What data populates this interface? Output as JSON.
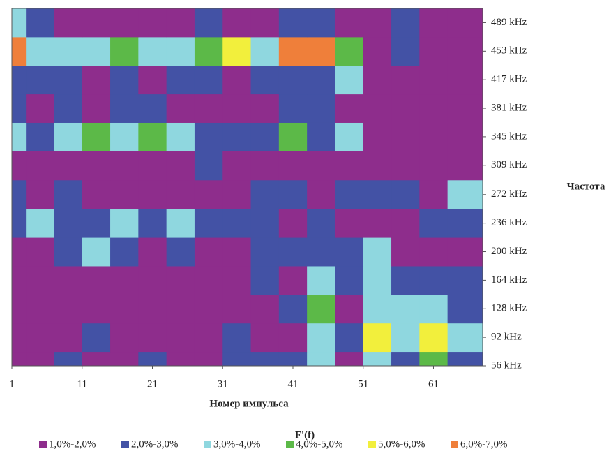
{
  "chart_data": {
    "type": "heatmap",
    "x_label": "Номер импульса",
    "y_label": "Частота",
    "legend_title": "F'(f)",
    "x": [
      1,
      5,
      9,
      13,
      17,
      21,
      25,
      29,
      33,
      37,
      41,
      45,
      49,
      53,
      57,
      61,
      65
    ],
    "y": [
      56,
      92,
      128,
      164,
      200,
      236,
      272,
      309,
      345,
      381,
      417,
      453,
      489
    ],
    "z": [
      [
        1.5,
        1.5,
        2.5,
        1.5,
        1.5,
        2.5,
        1.5,
        1.5,
        2.5,
        2.5,
        2.5,
        3.5,
        1.5,
        3.5,
        2.5,
        4.5,
        2.5
      ],
      [
        1.5,
        1.5,
        1.5,
        2.5,
        1.5,
        1.5,
        1.5,
        1.5,
        2.5,
        1.5,
        1.5,
        3.5,
        2.5,
        5.5,
        3.5,
        5.5,
        3.5
      ],
      [
        1.5,
        1.5,
        1.5,
        1.5,
        1.5,
        1.5,
        1.5,
        1.5,
        1.5,
        1.5,
        2.5,
        4.5,
        1.5,
        3.5,
        3.5,
        3.5,
        2.5
      ],
      [
        1.5,
        1.5,
        1.5,
        1.5,
        1.5,
        1.5,
        1.5,
        1.5,
        1.5,
        2.5,
        1.5,
        3.5,
        2.5,
        3.5,
        2.5,
        2.5,
        2.5
      ],
      [
        1.5,
        1.5,
        2.5,
        3.5,
        2.5,
        1.5,
        2.5,
        1.5,
        1.5,
        2.5,
        2.5,
        2.5,
        2.5,
        3.5,
        1.5,
        1.5,
        1.5
      ],
      [
        2.5,
        3.5,
        2.5,
        2.5,
        3.5,
        2.5,
        3.5,
        2.5,
        2.5,
        2.5,
        1.5,
        2.5,
        1.5,
        1.5,
        1.5,
        2.5,
        2.5
      ],
      [
        2.5,
        1.5,
        2.5,
        1.5,
        1.5,
        1.5,
        1.5,
        1.5,
        1.5,
        2.5,
        2.5,
        1.5,
        2.5,
        2.5,
        2.5,
        1.5,
        3.5
      ],
      [
        1.5,
        1.5,
        1.5,
        1.5,
        1.5,
        1.5,
        1.5,
        2.5,
        1.5,
        1.5,
        1.5,
        1.5,
        1.5,
        1.5,
        1.5,
        1.5,
        1.5
      ],
      [
        3.5,
        2.5,
        3.5,
        4.5,
        3.5,
        4.5,
        3.5,
        2.5,
        2.5,
        2.5,
        4.5,
        2.5,
        3.5,
        1.5,
        1.5,
        1.5,
        1.5
      ],
      [
        2.5,
        1.5,
        2.5,
        1.5,
        2.5,
        2.5,
        1.5,
        1.5,
        1.5,
        1.5,
        2.5,
        2.5,
        1.5,
        1.5,
        1.5,
        1.5,
        1.5
      ],
      [
        2.5,
        2.5,
        2.5,
        1.5,
        2.5,
        1.5,
        2.5,
        2.5,
        1.5,
        2.5,
        2.5,
        2.5,
        3.5,
        1.5,
        1.5,
        1.5,
        1.5
      ],
      [
        6.5,
        3.5,
        3.5,
        3.5,
        4.5,
        3.5,
        3.5,
        4.5,
        5.5,
        3.5,
        6.5,
        6.5,
        4.5,
        1.5,
        2.5,
        1.5,
        1.5
      ],
      [
        3.5,
        2.5,
        1.5,
        1.5,
        1.5,
        1.5,
        1.5,
        2.5,
        1.5,
        1.5,
        2.5,
        2.5,
        1.5,
        1.5,
        2.5,
        1.5,
        1.5
      ]
    ],
    "xlim": [
      1,
      68
    ],
    "xticks": [
      1,
      11,
      21,
      31,
      41,
      51,
      61
    ],
    "ylim": [
      56,
      507
    ],
    "yticks": [
      {
        "value": 56,
        "label": "56 kHz"
      },
      {
        "value": 92,
        "label": "92 kHz"
      },
      {
        "value": 128,
        "label": "128 kHz"
      },
      {
        "value": 164,
        "label": "164 kHz"
      },
      {
        "value": 200,
        "label": "200 kHz"
      },
      {
        "value": 236,
        "label": "236 kHz"
      },
      {
        "value": 272,
        "label": "272 kHz"
      },
      {
        "value": 309,
        "label": "309 kHz"
      },
      {
        "value": 345,
        "label": "345 kHz"
      },
      {
        "value": 381,
        "label": "381 kHz"
      },
      {
        "value": 417,
        "label": "417 kHz"
      },
      {
        "value": 453,
        "label": "453 kHz"
      },
      {
        "value": 489,
        "label": "489 kHz"
      }
    ],
    "levels": [
      1,
      2,
      3,
      4,
      5,
      6,
      7
    ],
    "bands": [
      {
        "name": "1,0%-2,0%",
        "color": "#8e2d8c"
      },
      {
        "name": "2,0%-3,0%",
        "color": "#4352a5"
      },
      {
        "name": "3,0%-4,0%",
        "color": "#8fd7df"
      },
      {
        "name": "4,0%-5,0%",
        "color": "#5cb948"
      },
      {
        "name": "5,0%-6,0%",
        "color": "#f2ef3c"
      },
      {
        "name": "6,0%-7,0%",
        "color": "#ef7f3a"
      }
    ]
  }
}
